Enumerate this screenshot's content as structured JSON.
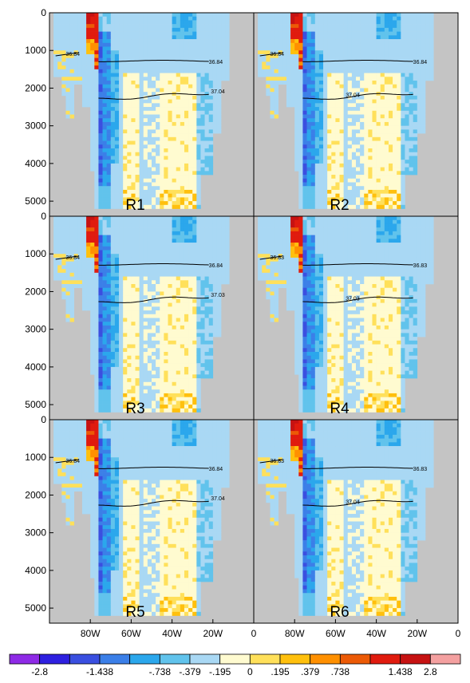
{
  "chart_data": {
    "type": "heatmap",
    "description_free": true,
    "colors": {
      "land": "#c4c4c4",
      "ocean_bins": [
        "#8e2ae6",
        "#2e20e0",
        "#3a4fe0",
        "#3b7fe8",
        "#2ba7ec",
        "#61c3ec",
        "#a9d8f4",
        "#fffbd0",
        "#ffe05a",
        "#ffc00d",
        "#ff9000",
        "#ec5a06",
        "#e01b0e",
        "#c61212",
        "#f4a0a0"
      ]
    },
    "x_axis": {
      "range": [
        -100,
        0
      ],
      "tick_labels": [
        "80W",
        "60W",
        "40W",
        "20W",
        "0"
      ]
    },
    "y_axis": {
      "range": [
        0,
        5400
      ],
      "tick_values": [
        0,
        1000,
        2000,
        3000,
        4000,
        5000
      ],
      "tick_labels": [
        "0",
        "1000",
        "2000",
        "3000",
        "4000",
        "5000"
      ]
    },
    "colorbar": {
      "labels": [
        "-2.8",
        "-1.438",
        "-.738",
        "-.379",
        "-.195",
        "0",
        ".195",
        ".379",
        ".738",
        "1.438",
        "2.8"
      ]
    },
    "panels": [
      {
        "name": "R1",
        "c1": "36.84",
        "c2": "37.04",
        "c1L": "36.84"
      },
      {
        "name": "R2",
        "c1": "36.84",
        "c2": "37.04",
        "c1L": "36.84"
      },
      {
        "name": "R3",
        "c1": "36.84",
        "c2": "37.03",
        "c1L": "36.84"
      },
      {
        "name": "R4",
        "c1": "36.83",
        "c2": "37.03",
        "c1L": "36.83"
      },
      {
        "name": "R5",
        "c1": "36.84",
        "c2": "37.04",
        "c1L": "36.84"
      },
      {
        "name": "R6",
        "c1": "36.83",
        "c2": "37.04",
        "c1L": "36.83"
      }
    ]
  }
}
